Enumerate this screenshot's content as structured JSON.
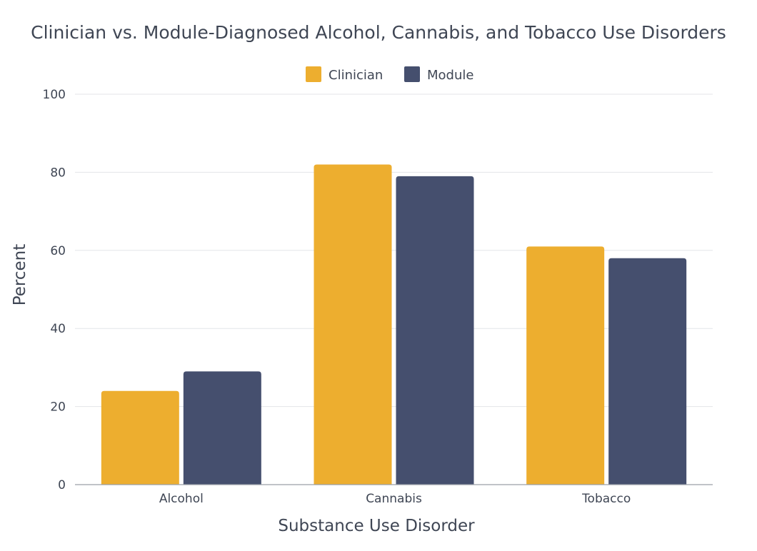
{
  "chart_data": {
    "type": "bar",
    "title": "Clinician vs. Module-Diagnosed Alcohol, Cannabis, and Tobacco Use Disorders",
    "xlabel": "Substance Use Disorder",
    "ylabel": "Percent",
    "categories": [
      "Alcohol",
      "Cannabis",
      "Tobacco"
    ],
    "series": [
      {
        "name": "Clinician",
        "color": "#EDAE2F",
        "values": [
          24,
          82,
          61
        ]
      },
      {
        "name": "Module",
        "color": "#454F6E",
        "values": [
          29,
          79,
          58
        ]
      }
    ],
    "ylim": [
      0,
      100
    ],
    "yticks": [
      "0",
      "20",
      "40",
      "60",
      "80",
      "100"
    ],
    "grid": true,
    "legend": "top-center"
  }
}
